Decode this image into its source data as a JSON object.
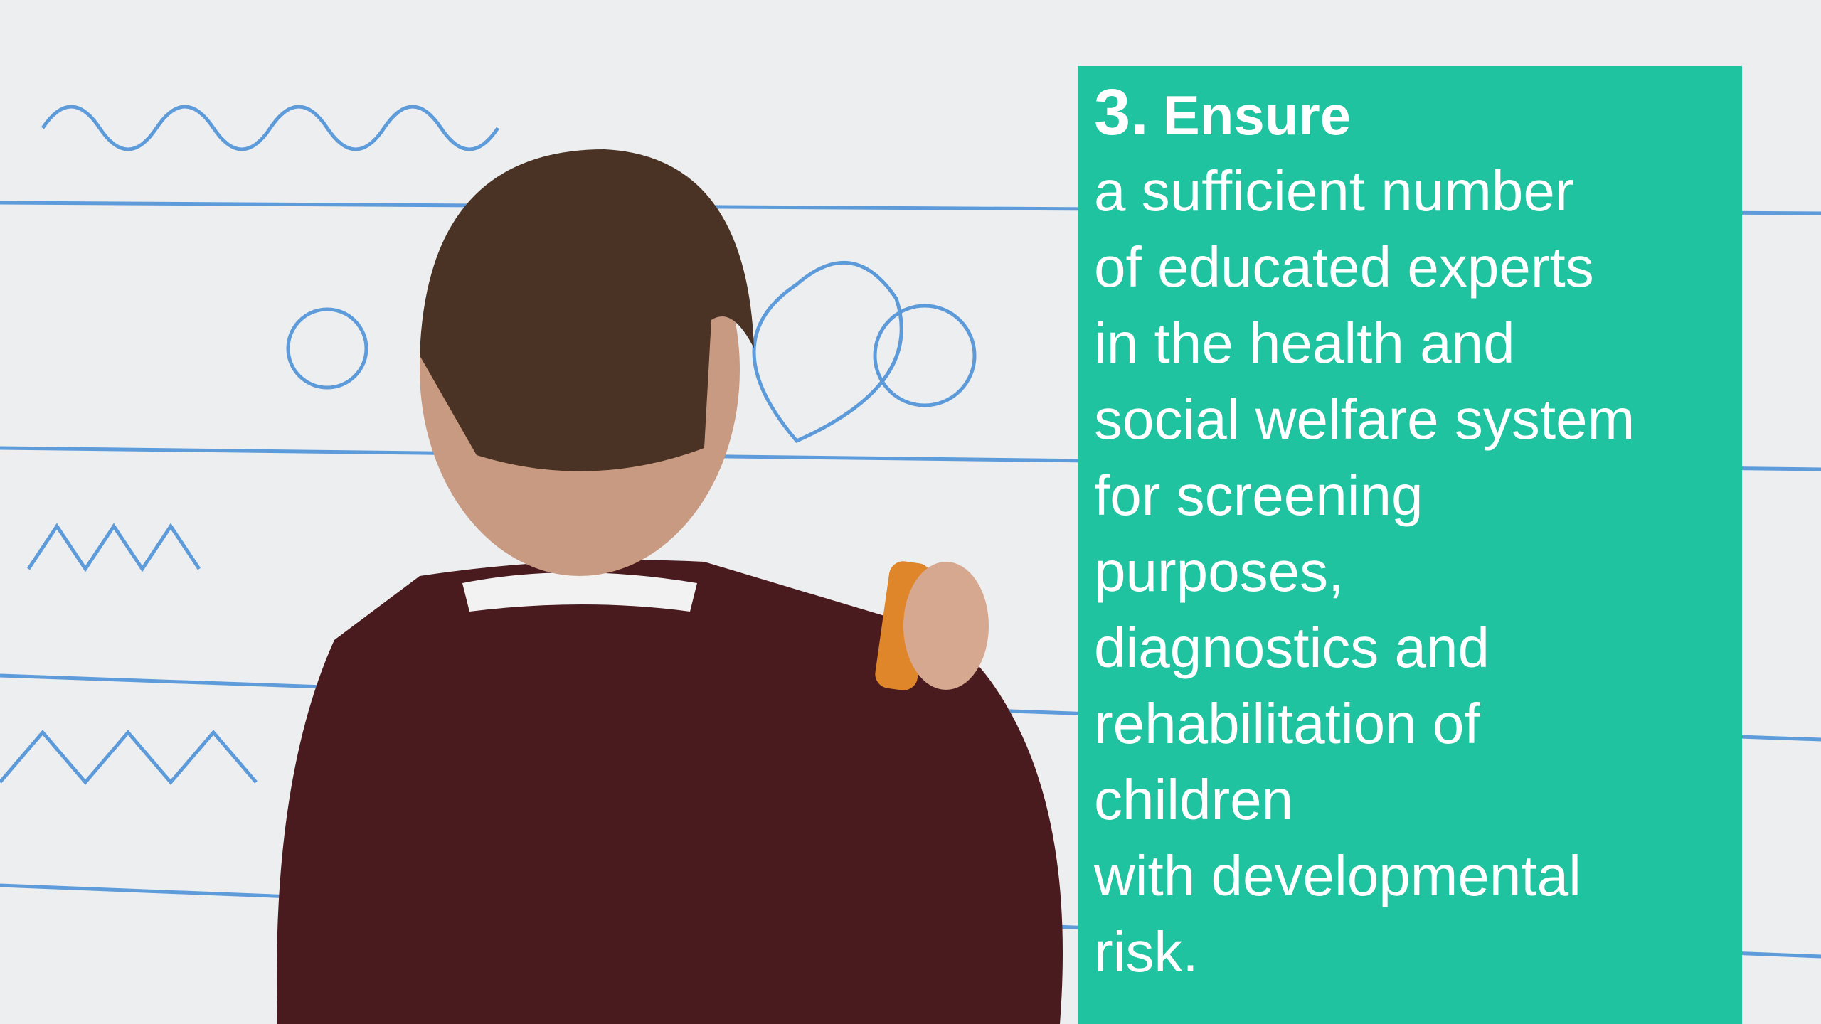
{
  "heading": {
    "number": "3.",
    "title": "Ensure"
  },
  "body_lines": [
    "a sufficient number",
    "of educated experts",
    "in the health and",
    "social welfare system",
    "for screening",
    "purposes,",
    "diagnostics and",
    "rehabilitation of",
    "children",
    "with developmental",
    "risk."
  ]
}
